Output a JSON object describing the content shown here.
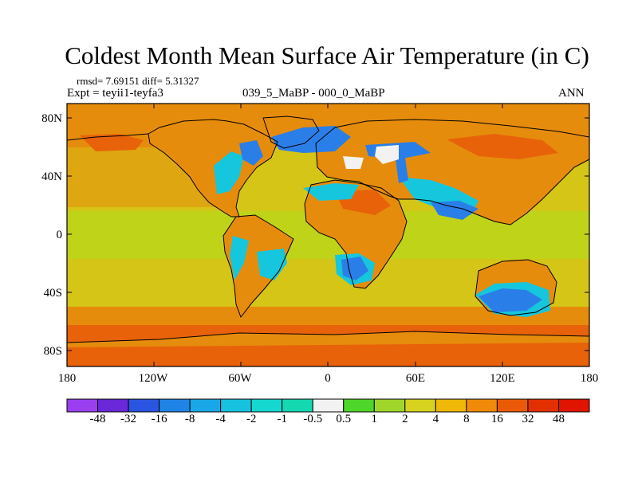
{
  "title": "Coldest Month Mean Surface Air Temperature (in C)",
  "stats": {
    "rmsd_label": "rmsd= 7.69151 diff= 5.31327"
  },
  "experiment": "Expt = teyii1-teyfa3",
  "period": "039_5_MaBP - 000_0_MaBP",
  "season": "ANN",
  "lat_ticks": [
    "80N",
    "40N",
    "0",
    "40S",
    "80S"
  ],
  "lon_ticks": [
    "180",
    "120W",
    "60W",
    "0",
    "60E",
    "120E",
    "180"
  ],
  "colorbar": {
    "labels": [
      "-48",
      "-32",
      "-16",
      "-8",
      "-4",
      "-2",
      "-1",
      "-0.5",
      "0.5",
      "1",
      "2",
      "4",
      "8",
      "16",
      "32",
      "48"
    ],
    "colors": [
      "#9a3ff0",
      "#6a28d8",
      "#2a55e0",
      "#1f84e6",
      "#19a7e8",
      "#16c2e0",
      "#14d8d0",
      "#13d8b0",
      "#f2f2f2",
      "#4fd62a",
      "#a0d62a",
      "#d6d21e",
      "#f0b808",
      "#f08a08",
      "#ea5a06",
      "#e23000",
      "#e01400"
    ]
  },
  "map": {
    "ocean_color": "#d4c516",
    "land_warm_color": "#e68c0c",
    "land_hot_color": "#e8620a",
    "cold_color": "#2a7ee8",
    "cool_color": "#16c6dc",
    "neutral_color": "#f2f2f2",
    "tropical_band_color": "#bfd318"
  }
}
